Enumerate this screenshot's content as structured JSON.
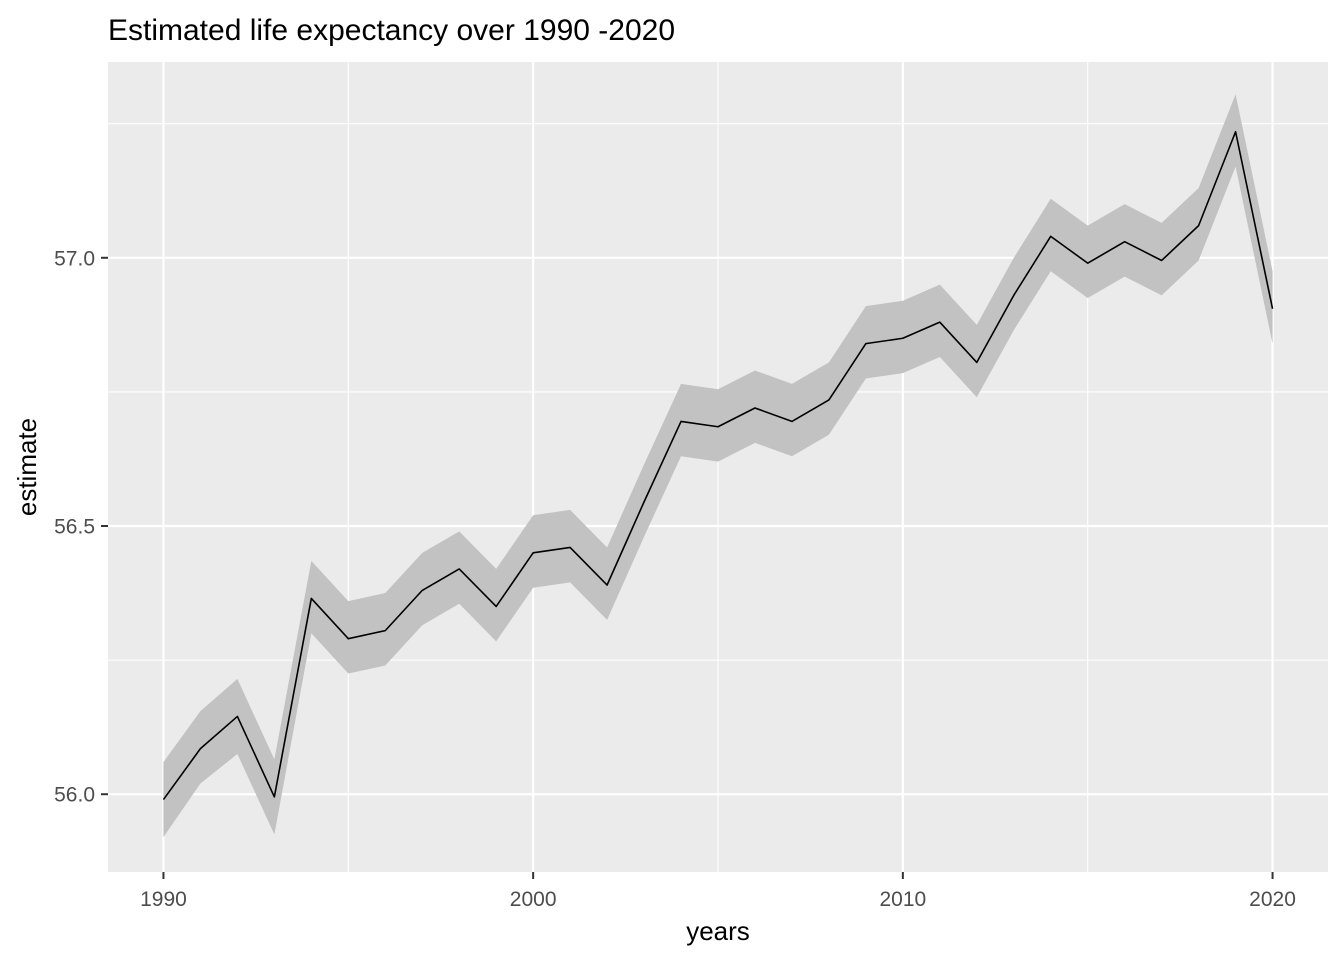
{
  "chart_data": {
    "type": "line",
    "title": "Estimated life expectancy over 1990 -2020",
    "xlabel": "years",
    "ylabel": "estimate",
    "xlim": [
      1988.5,
      2021.5
    ],
    "ylim": [
      55.855,
      57.365
    ],
    "x_ticks": [
      1990,
      2000,
      2010,
      2020
    ],
    "x_tick_labels": [
      "1990",
      "2000",
      "2010",
      "2020"
    ],
    "y_ticks": [
      56.0,
      56.5,
      57.0
    ],
    "y_tick_labels": [
      "56.0",
      "56.5",
      "57.0"
    ],
    "grid": true,
    "legend": "none",
    "band_color": "#c2c2c2",
    "line_color": "#000000",
    "panel_color": "#ebebeb",
    "series": [
      {
        "x": [
          1990,
          1991,
          1992,
          1993,
          1994,
          1995,
          1996,
          1997,
          1998,
          1999,
          2000,
          2001,
          2002,
          2003,
          2004,
          2005,
          2006,
          2007,
          2008,
          2009,
          2010,
          2011,
          2012,
          2013,
          2014,
          2015,
          2016,
          2017,
          2018,
          2019,
          2020
        ],
        "y": [
          55.99,
          56.085,
          56.145,
          55.995,
          56.365,
          56.29,
          56.305,
          56.38,
          56.42,
          56.35,
          56.45,
          56.46,
          56.39,
          56.545,
          56.695,
          56.685,
          56.72,
          56.695,
          56.735,
          56.84,
          56.85,
          56.88,
          56.805,
          56.93,
          57.04,
          56.99,
          57.03,
          56.995,
          57.06,
          57.235,
          56.905
        ],
        "lower": [
          55.92,
          56.02,
          56.075,
          55.925,
          56.3,
          56.225,
          56.24,
          56.315,
          56.355,
          56.285,
          56.385,
          56.395,
          56.325,
          56.48,
          56.63,
          56.62,
          56.655,
          56.63,
          56.67,
          56.775,
          56.785,
          56.815,
          56.74,
          56.865,
          56.975,
          56.925,
          56.965,
          56.93,
          56.995,
          57.17,
          56.84
        ],
        "upper": [
          56.06,
          56.155,
          56.215,
          56.065,
          56.435,
          56.36,
          56.375,
          56.45,
          56.49,
          56.42,
          56.52,
          56.53,
          56.46,
          56.615,
          56.765,
          56.755,
          56.79,
          56.765,
          56.805,
          56.91,
          56.92,
          56.95,
          56.875,
          57.0,
          57.11,
          57.06,
          57.1,
          57.065,
          57.13,
          57.305,
          56.975
        ]
      }
    ]
  }
}
